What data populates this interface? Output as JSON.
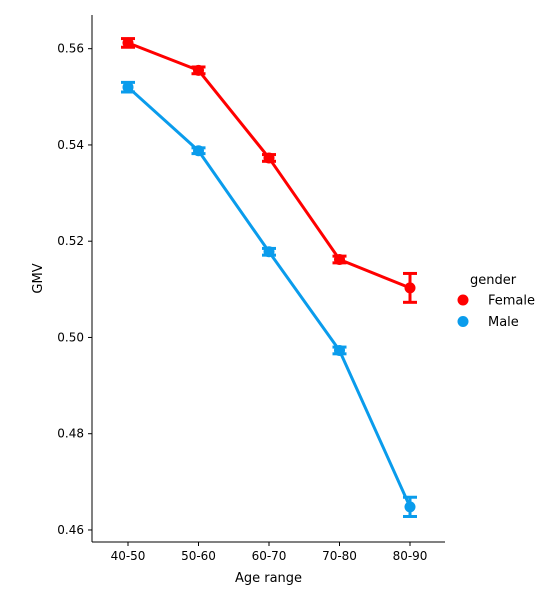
{
  "chart_data": {
    "type": "line",
    "xlabel": "Age range",
    "ylabel": "GMV",
    "categories": [
      "40-50",
      "50-60",
      "60-70",
      "70-80",
      "80-90"
    ],
    "ylim": [
      0.4575,
      0.567
    ],
    "yticks": [
      0.46,
      0.48,
      0.5,
      0.52,
      0.54,
      0.56
    ],
    "ytick_labels": [
      "0.46",
      "0.48",
      "0.50",
      "0.52",
      "0.54",
      "0.56"
    ],
    "grid": false,
    "legend": {
      "title": "gender",
      "placement": "right"
    },
    "series": [
      {
        "name": "Female",
        "color": "#ff0000",
        "values": [
          0.5612,
          0.5555,
          0.5373,
          0.5162,
          0.5103
        ],
        "ci_low": [
          0.5603,
          0.5548,
          0.5366,
          0.5155,
          0.5073
        ],
        "ci_high": [
          0.5621,
          0.5562,
          0.538,
          0.5169,
          0.5133
        ]
      },
      {
        "name": "Male",
        "color": "#0a9cec",
        "values": [
          0.552,
          0.5388,
          0.5178,
          0.4973,
          0.4648
        ],
        "ci_low": [
          0.551,
          0.5382,
          0.5171,
          0.4966,
          0.4628
        ],
        "ci_high": [
          0.553,
          0.5394,
          0.5185,
          0.498,
          0.4668
        ]
      }
    ]
  }
}
